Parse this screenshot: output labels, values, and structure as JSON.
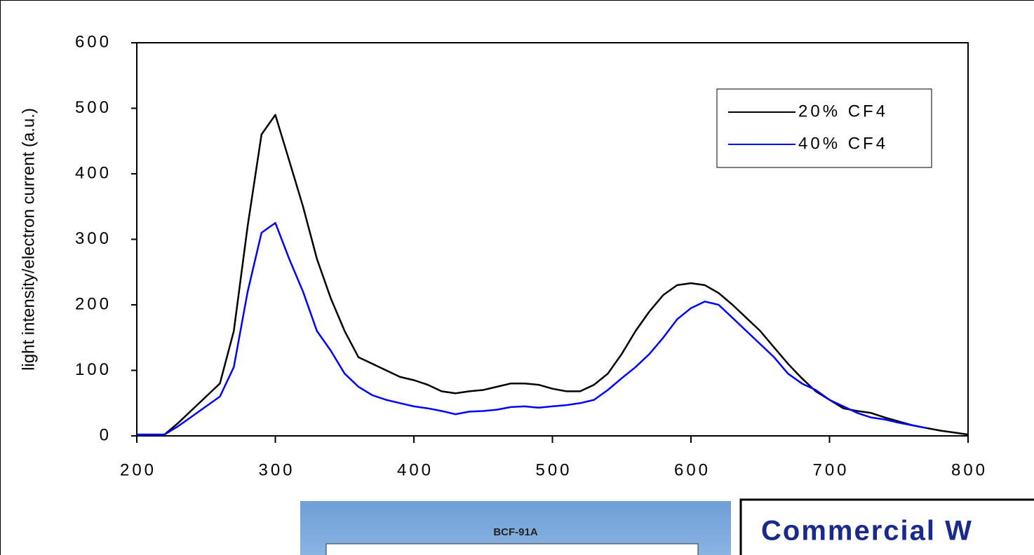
{
  "chart_data": {
    "type": "line",
    "y_label": "light intensity/electron current (a.u.)",
    "x": [
      200,
      210,
      220,
      230,
      240,
      250,
      260,
      270,
      280,
      290,
      300,
      310,
      320,
      330,
      340,
      350,
      360,
      370,
      380,
      390,
      400,
      410,
      420,
      430,
      440,
      450,
      460,
      470,
      480,
      490,
      500,
      510,
      520,
      530,
      540,
      550,
      560,
      570,
      580,
      590,
      600,
      610,
      620,
      630,
      640,
      650,
      660,
      670,
      680,
      690,
      700,
      710,
      720,
      730,
      740,
      750,
      760,
      770,
      780,
      790,
      800
    ],
    "series": [
      {
        "name": "20% CF4",
        "color": "#000000",
        "values": [
          2,
          2,
          2,
          20,
          40,
          60,
          80,
          160,
          320,
          460,
          490,
          420,
          350,
          270,
          210,
          160,
          120,
          110,
          100,
          90,
          85,
          78,
          68,
          65,
          68,
          70,
          75,
          80,
          80,
          78,
          72,
          68,
          68,
          78,
          95,
          125,
          160,
          190,
          215,
          230,
          233,
          230,
          218,
          200,
          180,
          160,
          135,
          110,
          88,
          68,
          55,
          42,
          38,
          35,
          28,
          22,
          16,
          12,
          8,
          5,
          2
        ]
      },
      {
        "name": "40% CF4",
        "color": "#0000ff",
        "values": [
          2,
          2,
          2,
          15,
          30,
          45,
          60,
          105,
          220,
          310,
          325,
          270,
          220,
          160,
          130,
          95,
          75,
          62,
          55,
          50,
          45,
          42,
          38,
          33,
          37,
          38,
          40,
          44,
          45,
          43,
          45,
          47,
          50,
          55,
          70,
          88,
          105,
          125,
          150,
          178,
          195,
          205,
          200,
          180,
          160,
          140,
          120,
          95,
          80,
          70,
          55,
          45,
          35,
          28,
          25,
          20,
          16,
          12,
          null,
          null,
          null
        ]
      }
    ],
    "xlim": [
      200,
      800
    ],
    "xticks": [
      200,
      300,
      400,
      500,
      600,
      700,
      800
    ],
    "ylim": [
      0,
      600
    ],
    "yticks": [
      0,
      100,
      200,
      300,
      400,
      500,
      600
    ],
    "legend": "upper right"
  },
  "inset": {
    "title": "BCF-91A"
  },
  "box": {
    "text": "Commercial W"
  }
}
